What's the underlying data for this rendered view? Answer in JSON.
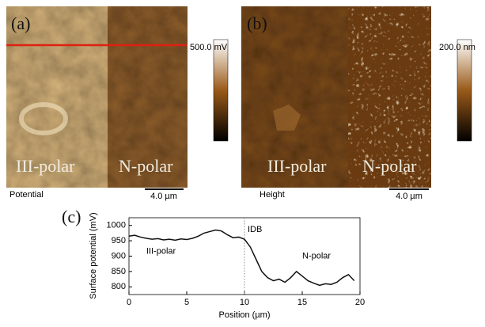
{
  "panels": [
    {
      "label": "(a)",
      "left_region": "III-polar",
      "right_region": "N-polar",
      "scale_max": "500.0 mV",
      "channel": "Potential",
      "scale_bar": "4.0 µm"
    },
    {
      "label": "(b)",
      "left_region": "III-polar",
      "right_region": "N-polar",
      "scale_max": "200.0 nm",
      "channel": "Height",
      "scale_bar": "4.0 µm"
    }
  ],
  "chart_data": {
    "type": "line",
    "label": "(c)",
    "x_label": "Position (µm)",
    "y_label": "Surface potential (mV)",
    "x": [
      0,
      0.5,
      1,
      1.5,
      2,
      2.5,
      3,
      3.5,
      4,
      4.5,
      5,
      5.5,
      6,
      6.5,
      7,
      7.5,
      8,
      8.5,
      9,
      9.5,
      10,
      10.5,
      11,
      11.5,
      12,
      12.5,
      13,
      13.5,
      14,
      14.5,
      15,
      15.5,
      16,
      16.5,
      17,
      17.5,
      18,
      18.5,
      19,
      19.5
    ],
    "series": [
      {
        "color": "#111111",
        "values": [
          965,
          968,
          962,
          958,
          955,
          957,
          953,
          955,
          952,
          956,
          954,
          958,
          965,
          975,
          980,
          985,
          982,
          970,
          960,
          962,
          955,
          930,
          890,
          850,
          830,
          820,
          825,
          815,
          830,
          850,
          835,
          820,
          812,
          805,
          810,
          808,
          815,
          830,
          840,
          820
        ]
      }
    ],
    "xlim": [
      0,
      20
    ],
    "xticks": [
      0,
      5,
      10,
      15,
      20
    ],
    "ylim": [
      775,
      1025
    ],
    "yticks": [
      800,
      850,
      900,
      950,
      1000
    ],
    "markers": [
      {
        "x": 10,
        "label": "IDB"
      }
    ],
    "annotations": [
      {
        "text": "III-polar",
        "x": 1.5,
        "y": 915
      },
      {
        "text": "N-polar",
        "x": 15,
        "y": 900
      }
    ]
  }
}
